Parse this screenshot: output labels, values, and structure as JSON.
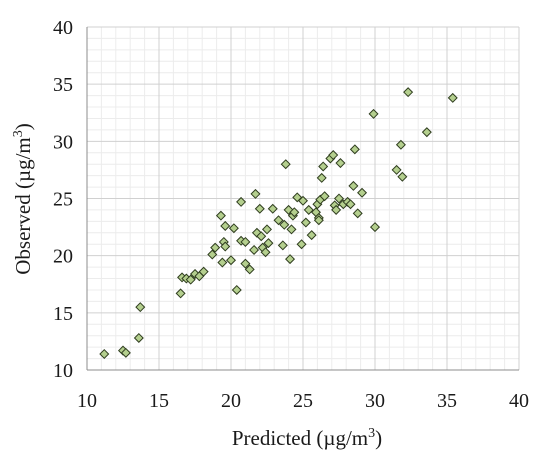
{
  "chart_data": {
    "type": "scatter",
    "title": "",
    "xlabel": "Predicted (µg/m",
    "ylabel": "Observed (µg/m",
    "unit_superscript": "3",
    "unit_close": ")",
    "xlim": [
      10,
      40
    ],
    "ylim": [
      10,
      40
    ],
    "xticks": [
      10,
      15,
      20,
      25,
      30,
      35,
      40
    ],
    "yticks": [
      10,
      15,
      20,
      25,
      30,
      35,
      40
    ],
    "grid": true,
    "minor_grid": true,
    "legend": "none",
    "marker": "diamond",
    "marker_fill": "#b4cf8e",
    "marker_edge": "#2f3d1f",
    "points": [
      {
        "x": 11.2,
        "y": 11.4
      },
      {
        "x": 12.5,
        "y": 11.7
      },
      {
        "x": 12.7,
        "y": 11.5
      },
      {
        "x": 13.6,
        "y": 12.8
      },
      {
        "x": 13.7,
        "y": 15.5
      },
      {
        "x": 16.5,
        "y": 16.7
      },
      {
        "x": 16.6,
        "y": 18.1
      },
      {
        "x": 16.9,
        "y": 18.0
      },
      {
        "x": 17.2,
        "y": 17.9
      },
      {
        "x": 17.5,
        "y": 18.4
      },
      {
        "x": 17.8,
        "y": 18.2
      },
      {
        "x": 18.1,
        "y": 18.6
      },
      {
        "x": 18.7,
        "y": 20.1
      },
      {
        "x": 18.9,
        "y": 20.7
      },
      {
        "x": 19.3,
        "y": 23.5
      },
      {
        "x": 19.6,
        "y": 22.6
      },
      {
        "x": 19.5,
        "y": 21.2
      },
      {
        "x": 19.6,
        "y": 20.8
      },
      {
        "x": 19.4,
        "y": 19.4
      },
      {
        "x": 20.0,
        "y": 19.6
      },
      {
        "x": 20.2,
        "y": 22.4
      },
      {
        "x": 20.4,
        "y": 17.0
      },
      {
        "x": 20.7,
        "y": 24.7
      },
      {
        "x": 20.7,
        "y": 21.3
      },
      {
        "x": 21.0,
        "y": 21.2
      },
      {
        "x": 21.0,
        "y": 19.3
      },
      {
        "x": 21.3,
        "y": 18.8
      },
      {
        "x": 21.6,
        "y": 20.5
      },
      {
        "x": 21.7,
        "y": 25.4
      },
      {
        "x": 21.8,
        "y": 22.0
      },
      {
        "x": 22.0,
        "y": 24.1
      },
      {
        "x": 22.1,
        "y": 21.7
      },
      {
        "x": 22.2,
        "y": 20.7
      },
      {
        "x": 22.4,
        "y": 20.3
      },
      {
        "x": 22.5,
        "y": 22.3
      },
      {
        "x": 22.6,
        "y": 21.1
      },
      {
        "x": 22.9,
        "y": 24.1
      },
      {
        "x": 23.3,
        "y": 23.1
      },
      {
        "x": 23.6,
        "y": 20.9
      },
      {
        "x": 23.7,
        "y": 22.7
      },
      {
        "x": 23.8,
        "y": 28.0
      },
      {
        "x": 24.0,
        "y": 24.0
      },
      {
        "x": 24.1,
        "y": 19.7
      },
      {
        "x": 24.2,
        "y": 22.3
      },
      {
        "x": 24.3,
        "y": 23.5
      },
      {
        "x": 24.4,
        "y": 23.8
      },
      {
        "x": 24.6,
        "y": 25.1
      },
      {
        "x": 24.9,
        "y": 21.0
      },
      {
        "x": 25.0,
        "y": 24.8
      },
      {
        "x": 25.2,
        "y": 22.9
      },
      {
        "x": 25.4,
        "y": 24.0
      },
      {
        "x": 25.6,
        "y": 21.8
      },
      {
        "x": 25.9,
        "y": 23.8
      },
      {
        "x": 26.0,
        "y": 24.5
      },
      {
        "x": 26.1,
        "y": 23.3
      },
      {
        "x": 26.1,
        "y": 23.1
      },
      {
        "x": 26.2,
        "y": 24.9
      },
      {
        "x": 26.3,
        "y": 26.8
      },
      {
        "x": 26.4,
        "y": 27.8
      },
      {
        "x": 26.5,
        "y": 25.2
      },
      {
        "x": 26.9,
        "y": 28.5
      },
      {
        "x": 27.1,
        "y": 28.8
      },
      {
        "x": 27.2,
        "y": 24.4
      },
      {
        "x": 27.3,
        "y": 24.0
      },
      {
        "x": 27.5,
        "y": 25.0
      },
      {
        "x": 27.6,
        "y": 28.1
      },
      {
        "x": 27.8,
        "y": 24.5
      },
      {
        "x": 28.1,
        "y": 24.7
      },
      {
        "x": 28.3,
        "y": 24.5
      },
      {
        "x": 28.5,
        "y": 26.1
      },
      {
        "x": 28.6,
        "y": 29.3
      },
      {
        "x": 28.8,
        "y": 23.7
      },
      {
        "x": 29.1,
        "y": 25.5
      },
      {
        "x": 29.9,
        "y": 32.4
      },
      {
        "x": 30.0,
        "y": 22.5
      },
      {
        "x": 31.5,
        "y": 27.5
      },
      {
        "x": 31.8,
        "y": 29.7
      },
      {
        "x": 31.9,
        "y": 26.9
      },
      {
        "x": 32.3,
        "y": 34.3
      },
      {
        "x": 33.6,
        "y": 30.8
      },
      {
        "x": 35.4,
        "y": 33.8
      }
    ]
  }
}
